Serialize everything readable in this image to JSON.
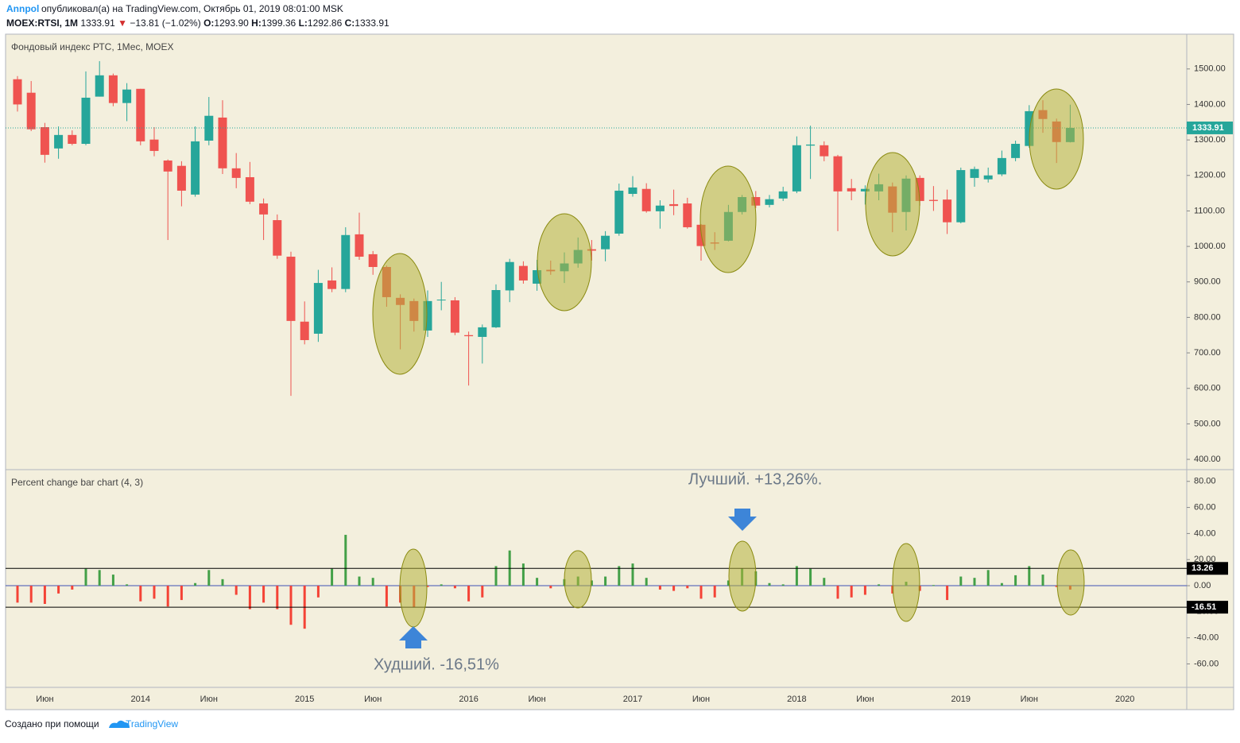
{
  "header": {
    "author": "Annpol",
    "published": "опубликовал(а) на TradingView.com, Октябрь 01, 2019 08:01:00 MSK"
  },
  "legend": {
    "symbol": "MOEX:RTSI, 1M",
    "last": "1333.91",
    "arrow": "▼",
    "change": "−13.81 (−1.02%)",
    "o_label": "O:",
    "o": "1293.90",
    "h_label": "H:",
    "h": "1399.36",
    "l_label": "L:",
    "l": "1292.86",
    "c_label": "C:",
    "c": "1333.91"
  },
  "footer": {
    "text": "Создано при помощи",
    "brand": "TradingView"
  },
  "chart_data": [
    {
      "type": "candlestick",
      "title": "Фондовый индекс РТС, 1Мес, MOEX",
      "up_color": "#26a69a",
      "down_color": "#ef5350",
      "categories": [
        null,
        null,
        "Июн",
        null,
        null,
        null,
        null,
        null,
        null,
        "2014",
        null,
        null,
        null,
        null,
        "Июн",
        null,
        null,
        null,
        null,
        null,
        null,
        "2015",
        null,
        null,
        null,
        null,
        "Июн",
        null,
        null,
        null,
        null,
        null,
        null,
        "2016",
        null,
        null,
        null,
        null,
        "Июн",
        null,
        null,
        null,
        null,
        null,
        null,
        "2017",
        null,
        null,
        null,
        null,
        "Июн",
        null,
        null,
        null,
        null,
        null,
        null,
        "2018",
        null,
        null,
        null,
        null,
        "Июн",
        null,
        null,
        null,
        null,
        null,
        null,
        "2019",
        null,
        null,
        null,
        null,
        "Июн",
        null,
        null,
        null
      ],
      "future_categories": [
        null,
        null,
        null,
        "2020"
      ],
      "open": [
        1471,
        1433,
        1336,
        1276,
        1314,
        1289,
        1422,
        1482,
        1404,
        1444,
        1301,
        1242,
        1227,
        1146,
        1298,
        1363,
        1220,
        1195,
        1121,
        1074,
        971,
        788,
        754,
        904,
        880,
        1034,
        978,
        942,
        855,
        846,
        763,
        848,
        848,
        750,
        745,
        772,
        876,
        945,
        895,
        934,
        930,
        952,
        992,
        992,
        1036,
        1148,
        1162,
        1099,
        1119,
        1121,
        1061,
        1011,
        1016,
        1097,
        1139,
        1117,
        1135,
        1155,
        1284,
        1285,
        1254,
        1164,
        1155,
        1155,
        1169,
        1097,
        1193,
        1131,
        1132,
        1068,
        1193,
        1189,
        1203,
        1249,
        1283,
        1384,
        1352,
        1293.9
      ],
      "high": [
        1480,
        1466,
        1348,
        1338,
        1327,
        1493,
        1522,
        1487,
        1460,
        1444,
        1336,
        1245,
        1240,
        1338,
        1421,
        1412,
        1263,
        1238,
        1135,
        1090,
        985,
        845,
        934,
        941,
        1054,
        1095,
        987,
        946,
        865,
        853,
        876,
        900,
        857,
        760,
        780,
        893,
        965,
        958,
        962,
        960,
        983,
        1025,
        1018,
        1043,
        1177,
        1198,
        1178,
        1130,
        1160,
        1137,
        1063,
        1040,
        1117,
        1145,
        1156,
        1145,
        1168,
        1310,
        1340,
        1296,
        1258,
        1190,
        1172,
        1205,
        1180,
        1200,
        1200,
        1170,
        1160,
        1222,
        1225,
        1222,
        1270,
        1298,
        1398,
        1412,
        1360,
        1399.36
      ],
      "low": [
        1380,
        1325,
        1236,
        1247,
        1285,
        1285,
        1422,
        1395,
        1353,
        1285,
        1254,
        1018,
        1113,
        1140,
        1285,
        1204,
        1164,
        1119,
        1018,
        965,
        579,
        724,
        731,
        871,
        871,
        962,
        920,
        830,
        710,
        760,
        745,
        820,
        750,
        608,
        670,
        770,
        843,
        895,
        875,
        920,
        897,
        940,
        960,
        958,
        1030,
        1140,
        1095,
        1050,
        1088,
        1050,
        960,
        990,
        1014,
        1090,
        1108,
        1110,
        1128,
        1150,
        1190,
        1240,
        1043,
        1130,
        1118,
        1130,
        1040,
        1045,
        1115,
        1100,
        1035,
        1065,
        1168,
        1180,
        1198,
        1240,
        1278,
        1320,
        1235,
        1292.86
      ],
      "close": [
        1400,
        1330,
        1258,
        1314,
        1289,
        1419,
        1482,
        1404,
        1442,
        1296,
        1269,
        1211,
        1157,
        1296,
        1368,
        1220,
        1193,
        1126,
        1090,
        974,
        790,
        736,
        897,
        880,
        1032,
        971,
        942,
        857,
        835,
        790,
        846,
        850,
        757,
        747,
        772,
        877,
        956,
        904,
        933,
        930,
        952,
        990,
        988,
        1030,
        1157,
        1166,
        1099,
        1115,
        1114,
        1054,
        1001,
        1008,
        1097,
        1139,
        1115,
        1133,
        1155,
        1285,
        1287,
        1254,
        1155,
        1155,
        1162,
        1175,
        1095,
        1191,
        1128,
        1128,
        1068,
        1215,
        1218,
        1200,
        1249,
        1289,
        1381,
        1359,
        1294,
        1333.91
      ],
      "last_price": {
        "value": 1333.91,
        "label": "1333.91"
      },
      "last_color": "#26a69a",
      "ylim": [
        371,
        1598
      ],
      "yticks": [
        {
          "value": 400,
          "label": "400.00"
        },
        {
          "value": 500,
          "label": "500.00"
        },
        {
          "value": 600,
          "label": "600.00"
        },
        {
          "value": 700,
          "label": "700.00"
        },
        {
          "value": 800,
          "label": "800.00"
        },
        {
          "value": 900,
          "label": "900.00"
        },
        {
          "value": 1000,
          "label": "1000.00"
        },
        {
          "value": 1100,
          "label": "1100.00"
        },
        {
          "value": 1200,
          "label": "1200.00"
        },
        {
          "value": 1300,
          "label": "1300.00"
        },
        {
          "value": 1400,
          "label": "1400.00"
        },
        {
          "value": 1500,
          "label": "1500.00"
        }
      ]
    },
    {
      "type": "bar",
      "title": "Percent change bar chart (4, 3)",
      "up_color": "#43a047",
      "down_color": "#f44336",
      "values": [
        -13,
        -13,
        -14,
        -6,
        -3,
        13,
        12,
        8.5,
        1,
        -12,
        -10,
        -16,
        -11,
        2,
        12,
        5,
        -7,
        -18,
        -13,
        -18,
        -30,
        -33,
        -9,
        13,
        39,
        7,
        6,
        -16,
        -13,
        -16.51,
        -1,
        1,
        -2,
        -12,
        -9,
        15,
        27,
        17,
        6,
        -2,
        5,
        7,
        4,
        7,
        15,
        17,
        6,
        -3,
        -4,
        -2,
        -10,
        -9,
        4,
        13.26,
        11,
        2,
        1,
        15,
        13,
        6,
        -10,
        -9,
        -7,
        1,
        -6,
        3,
        -4,
        0.5,
        -11,
        7,
        6,
        12,
        2,
        8,
        15,
        8.5,
        -1,
        -3
      ],
      "levels": [
        {
          "value": 13.26,
          "label": "13.26"
        },
        {
          "value": -16.51,
          "label": "-16.51"
        }
      ],
      "annotations": {
        "best": "Лучший. +13,26%.",
        "worst": "Худший. -16,51%"
      },
      "ylim": [
        -78,
        89
      ],
      "yticks": [
        {
          "value": 80,
          "label": "80.00"
        },
        {
          "value": 60,
          "label": "60.00"
        },
        {
          "value": 40,
          "label": "40.00"
        },
        {
          "value": 20,
          "label": "20.00"
        },
        {
          "value": 0,
          "label": "0.00"
        },
        {
          "value": -20,
          "label": "-20.00"
        },
        {
          "value": -40,
          "label": "-40.00"
        },
        {
          "value": -60,
          "label": "-60.00"
        }
      ]
    }
  ]
}
